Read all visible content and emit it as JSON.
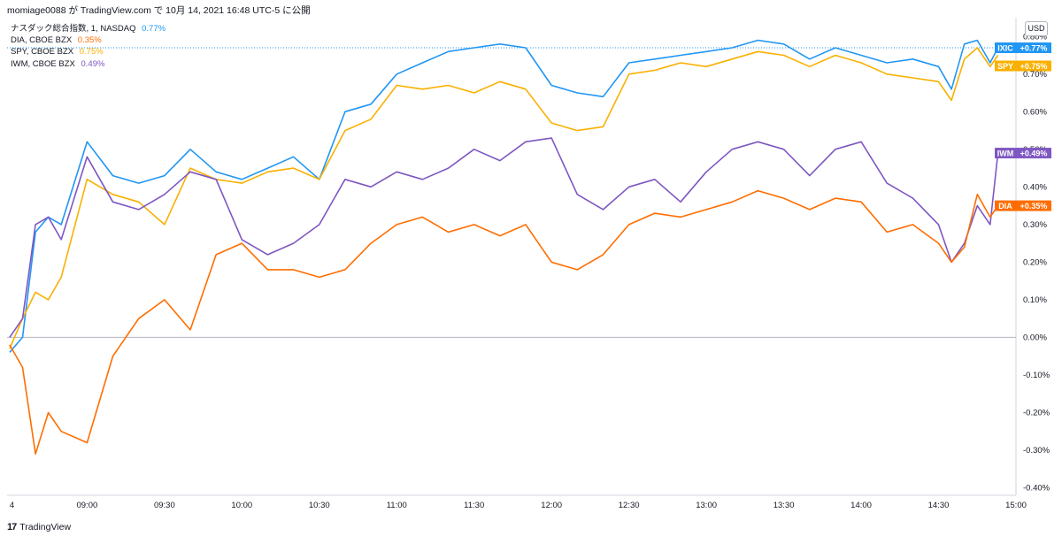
{
  "header": {
    "publisher": "momiage0088 が TradingView.com で 10月 14, 2021 16:48 UTC-5 に公開"
  },
  "legend": [
    {
      "label": "ナスダック総合指数, 1, NASDAQ",
      "value": "0.77%",
      "color": "#2196f3"
    },
    {
      "label": "DIA, CBOE BZX",
      "value": "0.35%",
      "color": "#ff6d00"
    },
    {
      "label": "SPY, CBOE BZX",
      "value": "0.75%",
      "color": "#f9b000"
    },
    {
      "label": "IWM, CBOE BZX",
      "value": "0.49%",
      "color": "#7e57c2"
    }
  ],
  "currency_button": "USD",
  "footer": {
    "brand": "TradingView",
    "logo_text": "17"
  },
  "chart_data": {
    "type": "line",
    "title": "",
    "xlabel": "",
    "ylabel": "",
    "ylim": [
      -0.42,
      0.85
    ],
    "y_ticks": [
      "0.80%",
      "0.70%",
      "0.60%",
      "0.50%",
      "0.40%",
      "0.30%",
      "0.20%",
      "0.10%",
      "0.00%",
      "-0.10%",
      "-0.20%",
      "-0.30%",
      "-0.40%"
    ],
    "y_tick_values": [
      0.8,
      0.7,
      0.6,
      0.5,
      0.4,
      0.3,
      0.2,
      0.1,
      0.0,
      -0.1,
      -0.2,
      -0.3,
      -0.4
    ],
    "x_ticks": [
      "4",
      "09:00",
      "09:30",
      "10:00",
      "10:30",
      "11:00",
      "11:30",
      "12:00",
      "12:30",
      "13:00",
      "13:30",
      "14:00",
      "14:30",
      "15:00"
    ],
    "x_tick_minutes": [
      510,
      540,
      570,
      600,
      630,
      660,
      690,
      720,
      750,
      780,
      810,
      840,
      870,
      900
    ],
    "x_range_minutes": [
      509,
      900
    ],
    "series": [
      {
        "name": "IXIC",
        "tag": "+0.77%",
        "color": "#2196f3",
        "x": [
          510,
          515,
          520,
          525,
          530,
          540,
          550,
          560,
          570,
          580,
          590,
          600,
          610,
          620,
          630,
          640,
          650,
          660,
          670,
          680,
          690,
          700,
          710,
          720,
          730,
          740,
          750,
          760,
          770,
          780,
          790,
          800,
          810,
          820,
          830,
          840,
          850,
          860,
          870,
          875,
          880,
          885,
          890,
          893
        ],
        "y": [
          -0.04,
          0.0,
          0.28,
          0.32,
          0.3,
          0.52,
          0.43,
          0.41,
          0.43,
          0.5,
          0.44,
          0.42,
          0.45,
          0.48,
          0.42,
          0.6,
          0.62,
          0.7,
          0.73,
          0.76,
          0.77,
          0.78,
          0.77,
          0.67,
          0.65,
          0.64,
          0.73,
          0.74,
          0.75,
          0.76,
          0.77,
          0.79,
          0.78,
          0.74,
          0.77,
          0.75,
          0.73,
          0.74,
          0.72,
          0.66,
          0.78,
          0.79,
          0.73,
          0.77
        ]
      },
      {
        "name": "SPY",
        "tag": "+0.75%",
        "color": "#f9b000",
        "x": [
          510,
          515,
          520,
          525,
          530,
          540,
          550,
          560,
          570,
          580,
          590,
          600,
          610,
          620,
          630,
          640,
          650,
          660,
          670,
          680,
          690,
          700,
          710,
          720,
          730,
          740,
          750,
          760,
          770,
          780,
          790,
          800,
          810,
          820,
          830,
          840,
          850,
          860,
          870,
          875,
          880,
          885,
          890,
          893
        ],
        "y": [
          -0.03,
          0.05,
          0.12,
          0.1,
          0.16,
          0.42,
          0.38,
          0.36,
          0.3,
          0.45,
          0.42,
          0.41,
          0.44,
          0.45,
          0.42,
          0.55,
          0.58,
          0.67,
          0.66,
          0.67,
          0.65,
          0.68,
          0.66,
          0.57,
          0.55,
          0.56,
          0.7,
          0.71,
          0.73,
          0.72,
          0.74,
          0.76,
          0.75,
          0.72,
          0.75,
          0.73,
          0.7,
          0.69,
          0.68,
          0.63,
          0.74,
          0.77,
          0.72,
          0.75
        ]
      },
      {
        "name": "IWM",
        "tag": "+0.49%",
        "color": "#7e57c2",
        "x": [
          510,
          515,
          520,
          525,
          530,
          540,
          550,
          560,
          570,
          580,
          590,
          600,
          610,
          620,
          630,
          640,
          650,
          660,
          670,
          680,
          690,
          700,
          710,
          720,
          730,
          740,
          750,
          760,
          770,
          780,
          790,
          800,
          810,
          820,
          830,
          840,
          850,
          860,
          870,
          875,
          880,
          885,
          890,
          893
        ],
        "y": [
          0.0,
          0.05,
          0.3,
          0.32,
          0.26,
          0.48,
          0.36,
          0.34,
          0.38,
          0.44,
          0.42,
          0.26,
          0.22,
          0.25,
          0.3,
          0.42,
          0.4,
          0.44,
          0.42,
          0.45,
          0.5,
          0.47,
          0.52,
          0.53,
          0.38,
          0.34,
          0.4,
          0.42,
          0.36,
          0.44,
          0.5,
          0.52,
          0.5,
          0.43,
          0.5,
          0.52,
          0.41,
          0.37,
          0.3,
          0.2,
          0.25,
          0.35,
          0.3,
          0.49
        ]
      },
      {
        "name": "DIA",
        "tag": "+0.35%",
        "color": "#ff6d00",
        "x": [
          510,
          515,
          520,
          525,
          530,
          540,
          550,
          560,
          570,
          580,
          590,
          600,
          610,
          620,
          630,
          640,
          650,
          660,
          670,
          680,
          690,
          700,
          710,
          720,
          730,
          740,
          750,
          760,
          770,
          780,
          790,
          800,
          810,
          820,
          830,
          840,
          850,
          860,
          870,
          875,
          880,
          885,
          890,
          893
        ],
        "y": [
          -0.02,
          -0.08,
          -0.31,
          -0.2,
          -0.25,
          -0.28,
          -0.05,
          0.05,
          0.1,
          0.02,
          0.22,
          0.25,
          0.18,
          0.18,
          0.16,
          0.18,
          0.25,
          0.3,
          0.32,
          0.28,
          0.3,
          0.27,
          0.3,
          0.2,
          0.18,
          0.22,
          0.3,
          0.33,
          0.32,
          0.34,
          0.36,
          0.39,
          0.37,
          0.34,
          0.37,
          0.36,
          0.28,
          0.3,
          0.25,
          0.2,
          0.24,
          0.38,
          0.32,
          0.35
        ]
      }
    ],
    "current_value_line": 0.77,
    "grid": false,
    "legend_position": "top-left"
  }
}
